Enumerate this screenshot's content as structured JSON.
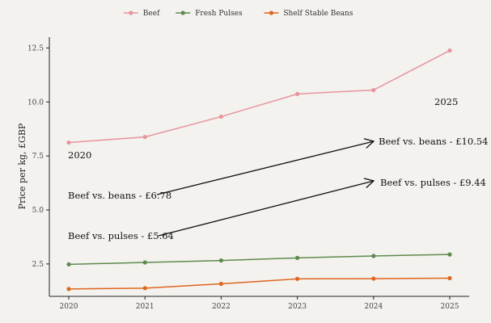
{
  "chart_data": {
    "type": "line",
    "title": "",
    "xlabel": "",
    "ylabel": "Price per kg, £GBP",
    "x": [
      2020,
      2021,
      2022,
      2023,
      2024,
      2025
    ],
    "xlim": [
      2020,
      2025
    ],
    "ylim": [
      1.0,
      13.0
    ],
    "yticks": [
      2.5,
      5.0,
      7.5,
      10.0,
      12.5
    ],
    "ytick_labels": [
      "2.5",
      "5.0",
      "7.5",
      "10.0",
      "12.5"
    ],
    "xtick_labels": [
      "2020",
      "2021",
      "2022",
      "2023",
      "2024",
      "2025"
    ],
    "grid": false,
    "legend_position": "top",
    "series": [
      {
        "name": "Beef",
        "color": "#e8949d",
        "values": [
          8.12,
          8.38,
          9.32,
          10.37,
          10.55,
          12.38
        ]
      },
      {
        "name": "Fresh Pulses",
        "color": "#5e8a4f",
        "values": [
          2.48,
          2.57,
          2.66,
          2.78,
          2.87,
          2.94
        ]
      },
      {
        "name": "Shelf Stable Beans",
        "color": "#e0651f",
        "values": [
          1.34,
          1.38,
          1.58,
          1.81,
          1.82,
          1.84
        ]
      }
    ],
    "annotations": {
      "year_2020": "2020",
      "year_2025": "2025",
      "beans_2020": "Beef vs. beans - £6.78",
      "pulses_2020": "Beef vs. pulses - £5.64",
      "beans_2025": "Beef vs. beans - £10.54",
      "pulses_2025": "Beef vs. pulses - £9.44"
    }
  }
}
